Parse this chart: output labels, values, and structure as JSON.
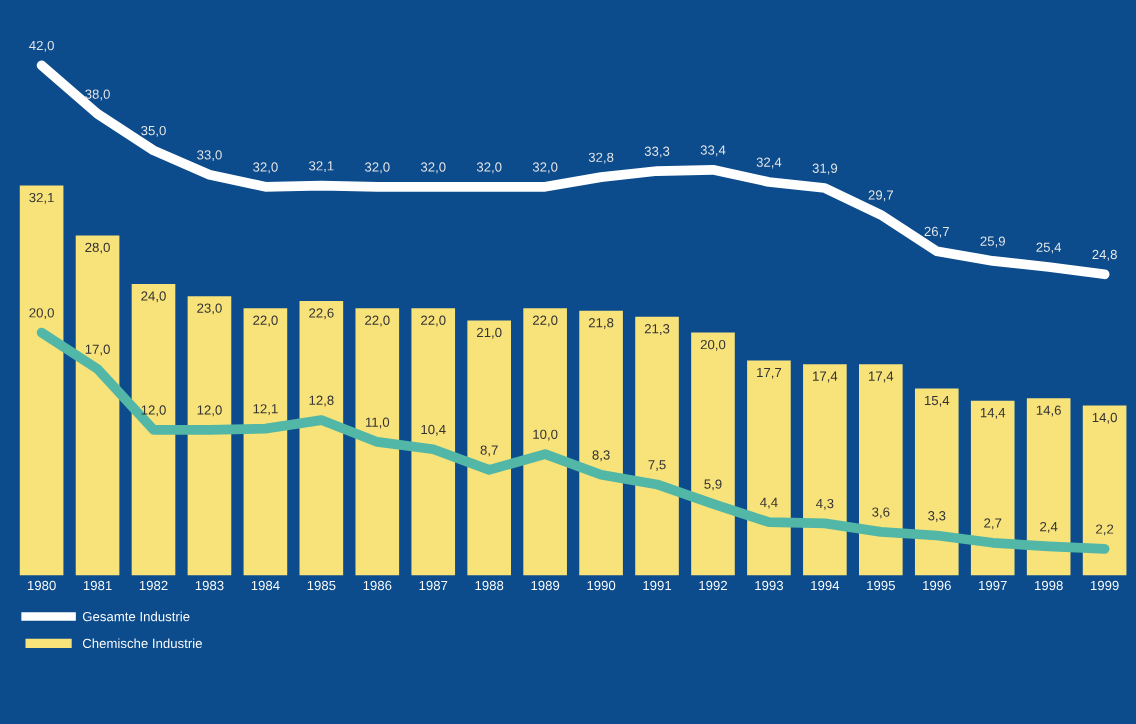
{
  "chart_data": {
    "type": "bar",
    "categories": [
      "1980",
      "1981",
      "1982",
      "1983",
      "1984",
      "1985",
      "1986",
      "1987",
      "1988",
      "1989",
      "1990",
      "1991",
      "1992",
      "1993",
      "1994",
      "1995",
      "1996",
      "1997",
      "1998",
      "1999"
    ],
    "series": [
      {
        "name": "Gesamte Industrie",
        "type": "line",
        "color": "#ffffff",
        "values": [
          42.0,
          38.0,
          35.0,
          33.0,
          32.0,
          32.1,
          32.0,
          32.0,
          32.0,
          32.0,
          32.8,
          33.3,
          33.4,
          32.4,
          31.9,
          29.7,
          26.7,
          25.9,
          25.4,
          24.8
        ],
        "value_labels": [
          "42,0",
          "38,0",
          "35,0",
          "33,0",
          "32,0",
          "32,1",
          "32,0",
          "32,0",
          "32,0",
          "32,0",
          "32,8",
          "33,3",
          "33,4",
          "32,4",
          "31,9",
          "29,7",
          "26,7",
          "25,9",
          "25,4",
          "24,8"
        ]
      },
      {
        "name": "Chemische Industrie",
        "color": "#f8e27a",
        "values": [
          32.1,
          28.0,
          24.0,
          23.0,
          22.0,
          22.6,
          22.0,
          22.0,
          21.0,
          22.0,
          21.8,
          21.3,
          20.0,
          17.7,
          17.4,
          17.4,
          15.4,
          14.4,
          14.6,
          14.0
        ],
        "value_labels": [
          "32,1",
          "28,0",
          "24,0",
          "23,0",
          "22,0",
          "22,6",
          "22,0",
          "22,0",
          "21,0",
          "22,0",
          "21,8",
          "21,3",
          "20,0",
          "17,7",
          "17,4",
          "17,4",
          "15,4",
          "14,4",
          "14,6",
          "14,0"
        ]
      },
      {
        "type": "line",
        "color": "#52b7a6",
        "values": [
          20.0,
          17.0,
          12.0,
          12.0,
          12.1,
          12.8,
          11.0,
          10.4,
          8.7,
          10.0,
          8.3,
          7.5,
          5.9,
          4.4,
          4.3,
          3.6,
          3.3,
          2.7,
          2.4,
          2.2
        ],
        "value_labels": [
          "20,0",
          "17,0",
          "12,0",
          "12,0",
          "12,1",
          "12,8",
          "11,0",
          "10,4",
          "8,7",
          "10,0",
          "8,3",
          "7,5",
          "5,9",
          "4,4",
          "4,3",
          "3,6",
          "3,3",
          "2,7",
          "2,4",
          "2,2"
        ]
      }
    ],
    "legend": "bottom left",
    "tick_labels": "x"
  }
}
